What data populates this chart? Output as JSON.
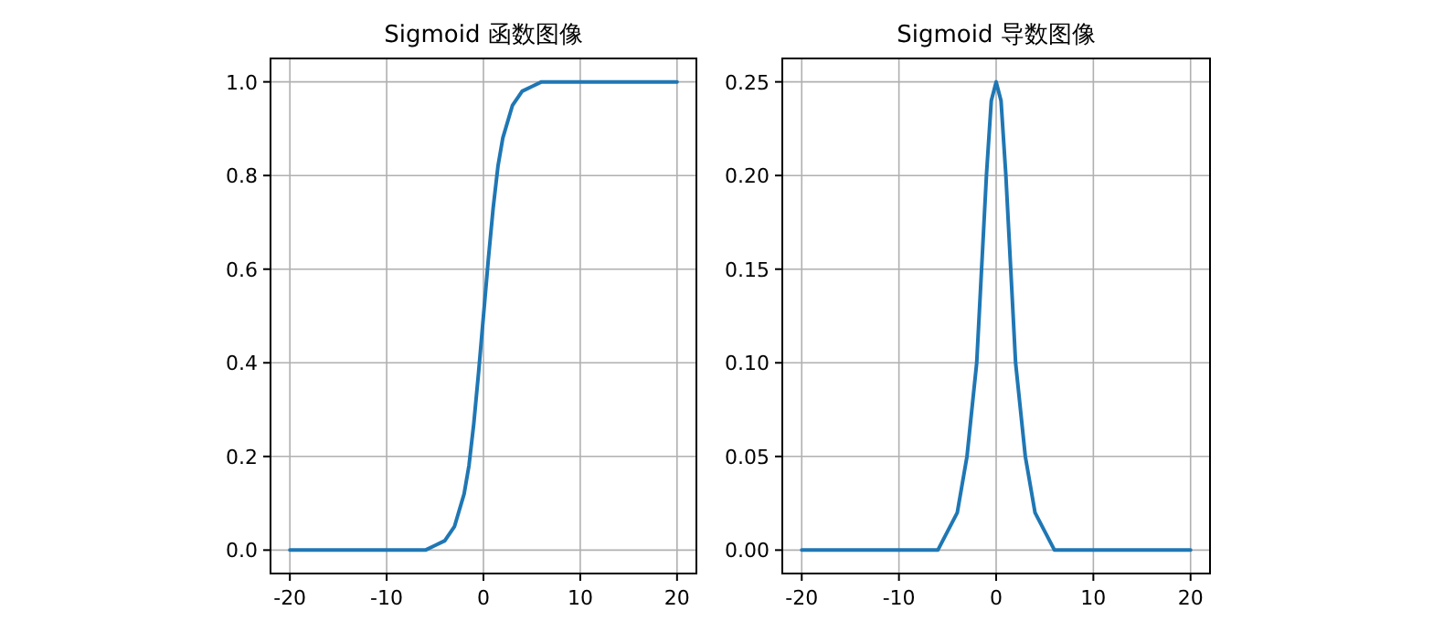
{
  "chart_data": [
    {
      "type": "line",
      "title": "Sigmoid 函数图像",
      "x": [
        -20,
        -10,
        -8,
        -6,
        -5,
        -4,
        -3,
        -2,
        -1.5,
        -1,
        -0.5,
        0,
        0.5,
        1,
        1.5,
        2,
        3,
        4,
        5,
        6,
        8,
        10,
        20
      ],
      "series": [
        {
          "color": "#1f77b4",
          "values": [
            0,
            0,
            0,
            0,
            0.01,
            0.02,
            0.05,
            0.12,
            0.18,
            0.27,
            0.38,
            0.5,
            0.62,
            0.73,
            0.82,
            0.88,
            0.95,
            0.98,
            0.99,
            1,
            1,
            1,
            1
          ]
        }
      ],
      "xlim": [
        -22,
        22
      ],
      "ylim": [
        -0.05,
        1.05
      ],
      "xticks": [
        -20,
        -10,
        0,
        10,
        20
      ],
      "yticks": [
        {
          "value": 0,
          "label": "0.0"
        },
        {
          "value": 0.2,
          "label": "0.2"
        },
        {
          "value": 0.4,
          "label": "0.4"
        },
        {
          "value": 0.6,
          "label": "0.6"
        },
        {
          "value": 0.8,
          "label": "0.8"
        },
        {
          "value": 1,
          "label": "1.0"
        }
      ],
      "grid": true
    },
    {
      "type": "line",
      "title": "Sigmoid 导数图像",
      "x": [
        -20,
        -10,
        -8,
        -6,
        -5,
        -4,
        -3,
        -2,
        -1.5,
        -1,
        -0.5,
        0,
        0.5,
        1,
        1.5,
        2,
        3,
        4,
        5,
        6,
        8,
        10,
        20
      ],
      "series": [
        {
          "color": "#1f77b4",
          "values": [
            0,
            0,
            0,
            0,
            0.01,
            0.02,
            0.05,
            0.1,
            0.15,
            0.2,
            0.24,
            0.25,
            0.24,
            0.2,
            0.15,
            0.1,
            0.05,
            0.02,
            0.01,
            0,
            0,
            0,
            0
          ]
        }
      ],
      "xlim": [
        -22,
        22
      ],
      "ylim": [
        -0.0125,
        0.2625
      ],
      "xticks": [
        -20,
        -10,
        0,
        10,
        20
      ],
      "yticks": [
        {
          "value": 0,
          "label": "0.00"
        },
        {
          "value": 0.05,
          "label": "0.05"
        },
        {
          "value": 0.1,
          "label": "0.10"
        },
        {
          "value": 0.15,
          "label": "0.15"
        },
        {
          "value": 0.2,
          "label": "0.20"
        },
        {
          "value": 0.25,
          "label": "0.25"
        }
      ],
      "grid": true
    }
  ]
}
